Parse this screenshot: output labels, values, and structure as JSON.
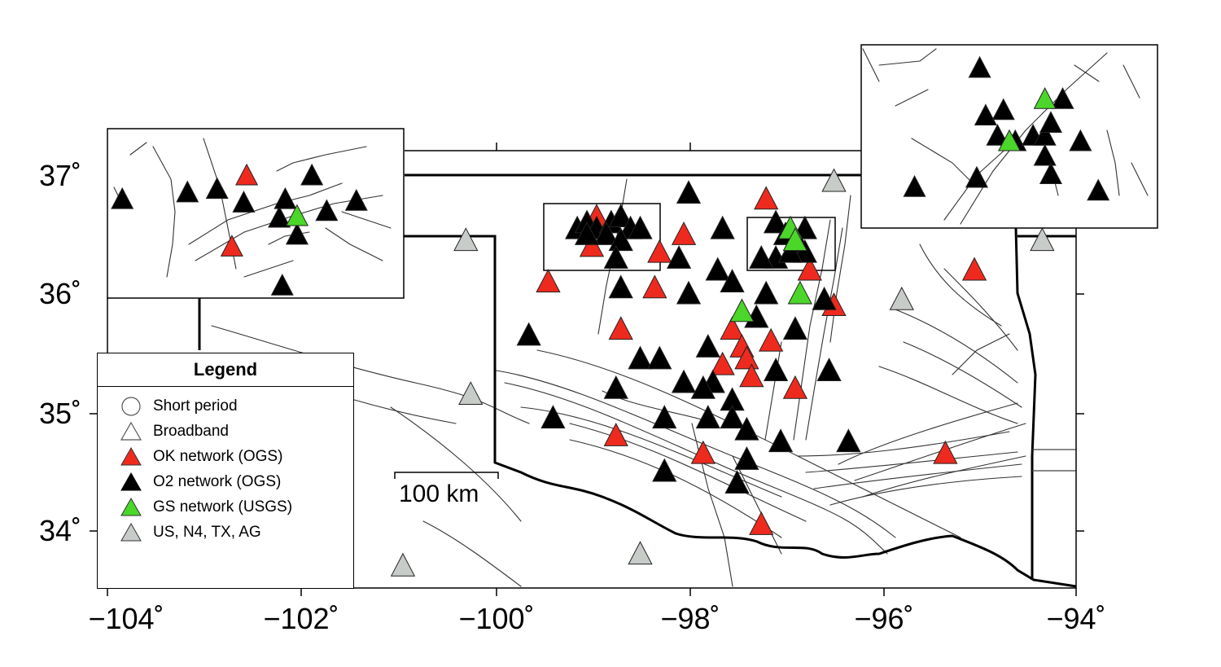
{
  "axes": {
    "x_ticks": [
      "−104˚",
      "−102˚",
      "−100˚",
      "−98˚",
      "−96˚",
      "−94˚"
    ],
    "y_ticks": [
      "37˚",
      "36˚",
      "35˚",
      "34˚"
    ]
  },
  "legend": {
    "title": "Legend",
    "items": [
      {
        "label": "Short period",
        "symbol": "circle-outline"
      },
      {
        "label": "Broadband",
        "symbol": "triangle-outline"
      },
      {
        "label": "OK network (OGS)",
        "symbol": "triangle",
        "color": "#ee2a1e"
      },
      {
        "label": "O2 network (OGS)",
        "symbol": "triangle",
        "color": "#000000"
      },
      {
        "label": "GS network (USGS)",
        "symbol": "triangle",
        "color": "#4bd62a"
      },
      {
        "label": "US, N4, TX, AG",
        "symbol": "triangle",
        "color": "#c8ccc8"
      }
    ]
  },
  "scale_bar": {
    "label": "100 km"
  },
  "colors": {
    "OK": "#ee2a1e",
    "O2": "#000000",
    "GS": "#4bd62a",
    "US": "#c8ccc8"
  },
  "stations": {
    "US": [
      [
        -100.3,
        36.45
      ],
      [
        -94.35,
        36.45
      ],
      [
        -96.5,
        36.95
      ],
      [
        -95.8,
        35.95
      ],
      [
        -100.25,
        35.15
      ],
      [
        -100.95,
        33.7
      ],
      [
        -98.5,
        33.8
      ]
    ],
    "OK": [
      [
        -98.95,
        36.65
      ],
      [
        -99.0,
        36.4
      ],
      [
        -99.45,
        36.1
      ],
      [
        -98.3,
        36.35
      ],
      [
        -98.05,
        36.5
      ],
      [
        -98.35,
        36.05
      ],
      [
        -97.2,
        36.8
      ],
      [
        -96.75,
        36.2
      ],
      [
        -96.5,
        35.9
      ],
      [
        -95.05,
        36.2
      ],
      [
        -98.7,
        35.7
      ],
      [
        -97.55,
        35.7
      ],
      [
        -97.45,
        35.55
      ],
      [
        -97.4,
        35.45
      ],
      [
        -97.65,
        35.4
      ],
      [
        -97.35,
        35.3
      ],
      [
        -97.15,
        35.6
      ],
      [
        -96.9,
        35.2
      ],
      [
        -98.75,
        34.8
      ],
      [
        -97.85,
        34.65
      ],
      [
        -97.25,
        34.05
      ],
      [
        -95.35,
        34.65
      ]
    ],
    "GS": [
      [
        -97.45,
        35.85
      ],
      [
        -96.85,
        36.0
      ],
      [
        -96.95,
        36.55
      ],
      [
        -96.9,
        36.45
      ]
    ],
    "O2": [
      [
        -99.15,
        36.55
      ],
      [
        -99.05,
        36.6
      ],
      [
        -98.95,
        36.55
      ],
      [
        -98.8,
        36.6
      ],
      [
        -98.7,
        36.65
      ],
      [
        -98.85,
        36.5
      ],
      [
        -98.6,
        36.55
      ],
      [
        -98.5,
        36.55
      ],
      [
        -98.7,
        36.45
      ],
      [
        -98.75,
        36.3
      ],
      [
        -99.05,
        36.5
      ],
      [
        -98.0,
        36.85
      ],
      [
        -97.65,
        36.55
      ],
      [
        -98.1,
        36.3
      ],
      [
        -98.7,
        36.05
      ],
      [
        -98.0,
        36.0
      ],
      [
        -97.7,
        36.2
      ],
      [
        -97.55,
        36.1
      ],
      [
        -97.2,
        36.0
      ],
      [
        -97.1,
        36.6
      ],
      [
        -96.8,
        36.55
      ],
      [
        -97.0,
        36.5
      ],
      [
        -96.9,
        36.45
      ],
      [
        -97.1,
        36.3
      ],
      [
        -97.25,
        36.3
      ],
      [
        -96.85,
        36.4
      ],
      [
        -96.8,
        36.35
      ],
      [
        -96.95,
        36.35
      ],
      [
        -96.6,
        35.95
      ],
      [
        -97.3,
        35.8
      ],
      [
        -96.9,
        35.7
      ],
      [
        -99.65,
        35.65
      ],
      [
        -98.5,
        35.45
      ],
      [
        -98.3,
        35.45
      ],
      [
        -97.8,
        35.55
      ],
      [
        -97.75,
        35.25
      ],
      [
        -98.05,
        35.25
      ],
      [
        -97.85,
        35.2
      ],
      [
        -97.1,
        35.35
      ],
      [
        -96.55,
        35.35
      ],
      [
        -98.75,
        35.2
      ],
      [
        -97.55,
        35.1
      ],
      [
        -99.4,
        34.95
      ],
      [
        -98.25,
        34.95
      ],
      [
        -97.8,
        34.95
      ],
      [
        -97.55,
        34.95
      ],
      [
        -97.4,
        34.85
      ],
      [
        -97.05,
        34.75
      ],
      [
        -96.35,
        34.75
      ],
      [
        -97.4,
        34.6
      ],
      [
        -98.25,
        34.5
      ],
      [
        -97.5,
        34.4
      ]
    ]
  },
  "insets": {
    "left_a": {
      "OK": [
        [
          0.47,
          0.28
        ],
        [
          0.42,
          0.7
        ]
      ],
      "GS": [
        [
          0.64,
          0.52
        ]
      ],
      "O2": [
        [
          0.27,
          0.38
        ],
        [
          0.37,
          0.36
        ],
        [
          0.46,
          0.44
        ],
        [
          0.58,
          0.53
        ],
        [
          0.6,
          0.42
        ],
        [
          0.64,
          0.63
        ],
        [
          0.69,
          0.28
        ],
        [
          0.74,
          0.49
        ],
        [
          0.84,
          0.43
        ],
        [
          0.59,
          0.93
        ],
        [
          0.05,
          0.42
        ]
      ]
    },
    "right_b": {
      "GS": [
        [
          0.62,
          0.3
        ],
        [
          0.5,
          0.53
        ]
      ],
      "O2": [
        [
          0.4,
          0.13
        ],
        [
          0.42,
          0.39
        ],
        [
          0.48,
          0.36
        ],
        [
          0.46,
          0.5
        ],
        [
          0.52,
          0.53
        ],
        [
          0.58,
          0.5
        ],
        [
          0.62,
          0.5
        ],
        [
          0.64,
          0.43
        ],
        [
          0.68,
          0.3
        ],
        [
          0.62,
          0.61
        ],
        [
          0.64,
          0.71
        ],
        [
          0.74,
          0.53
        ],
        [
          0.8,
          0.8
        ],
        [
          0.39,
          0.73
        ],
        [
          0.18,
          0.78
        ]
      ]
    }
  }
}
